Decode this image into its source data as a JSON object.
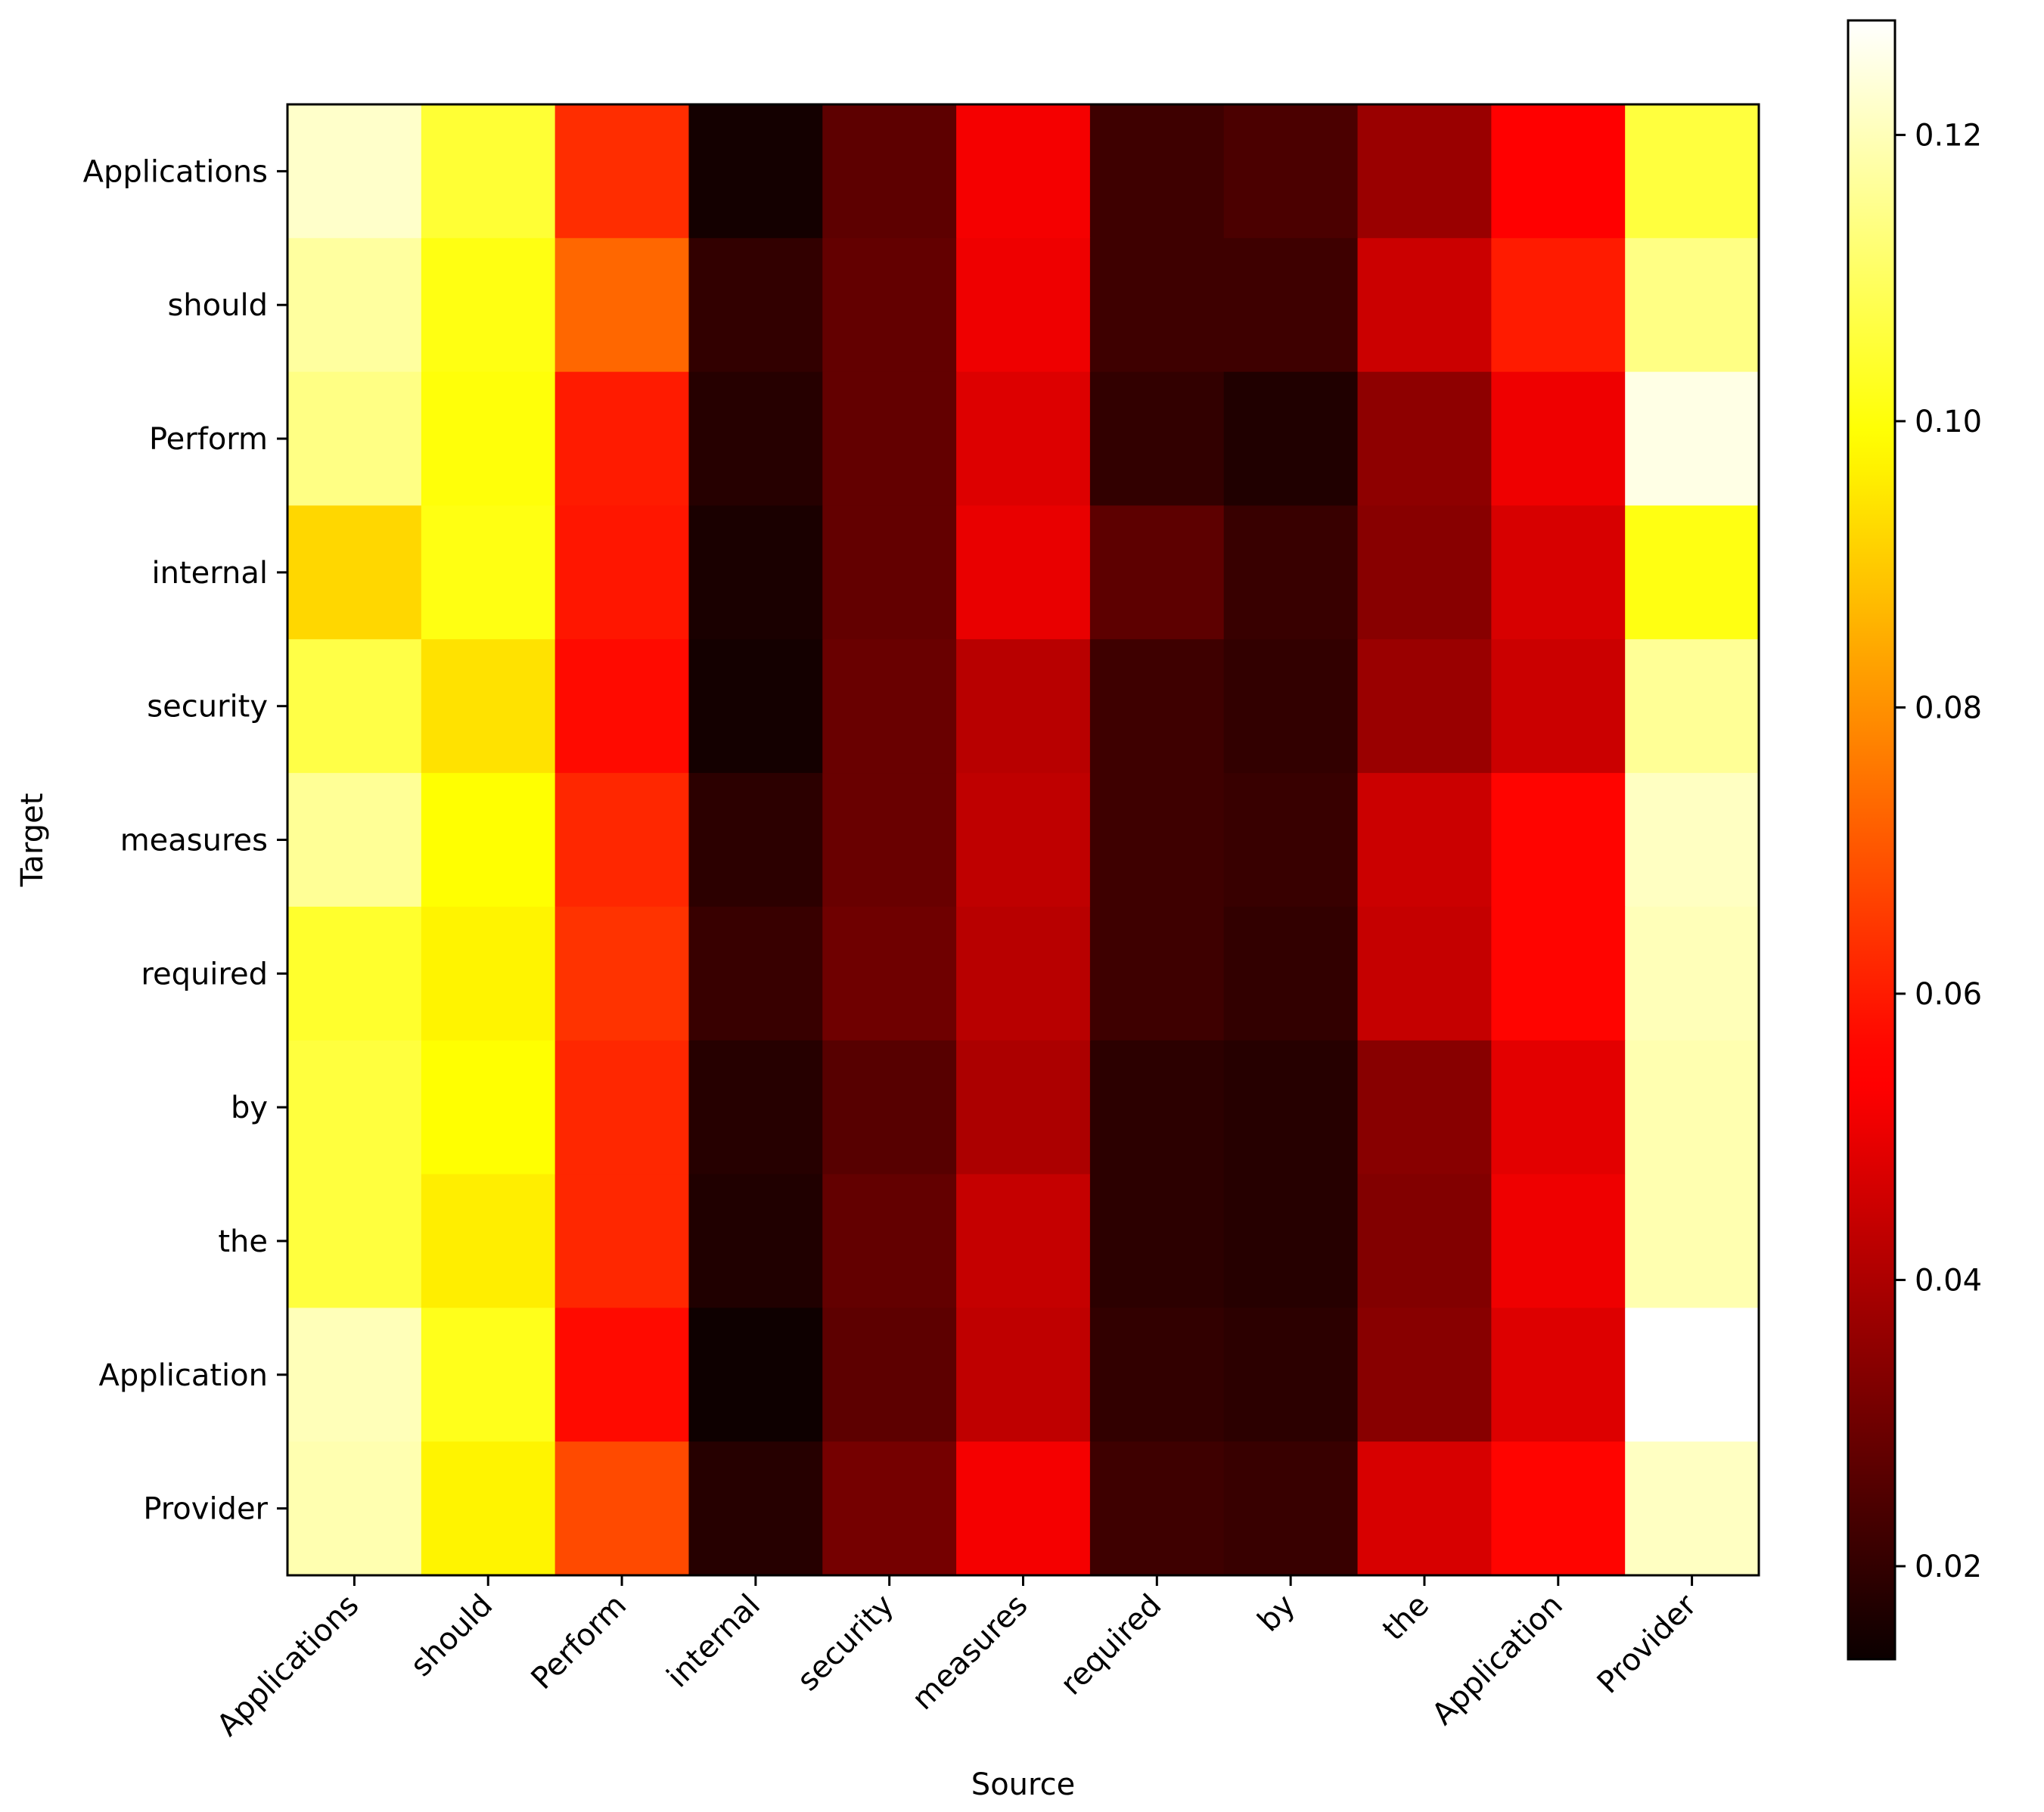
{
  "chart_data": {
    "type": "heatmap",
    "title": "",
    "xlabel": "Source",
    "ylabel": "Target",
    "x_categories": [
      "Applications",
      "should",
      "Perform",
      "internal",
      "security",
      "measures",
      "required",
      "by",
      "the",
      "Application",
      "Provider"
    ],
    "y_categories": [
      "Applications",
      "should",
      "Perform",
      "internal",
      "security",
      "measures",
      "required",
      "by",
      "the",
      "Application",
      "Provider"
    ],
    "values": [
      [
        0.122,
        0.105,
        0.063,
        0.015,
        0.027,
        0.052,
        0.022,
        0.024,
        0.037,
        0.054,
        0.106
      ],
      [
        0.117,
        0.101,
        0.073,
        0.02,
        0.028,
        0.051,
        0.022,
        0.022,
        0.045,
        0.06,
        0.114
      ],
      [
        0.114,
        0.1,
        0.06,
        0.018,
        0.028,
        0.048,
        0.02,
        0.017,
        0.035,
        0.051,
        0.125
      ],
      [
        0.092,
        0.101,
        0.059,
        0.016,
        0.028,
        0.05,
        0.027,
        0.021,
        0.034,
        0.047,
        0.101
      ],
      [
        0.107,
        0.094,
        0.057,
        0.015,
        0.029,
        0.042,
        0.022,
        0.02,
        0.037,
        0.045,
        0.116
      ],
      [
        0.116,
        0.099,
        0.062,
        0.019,
        0.029,
        0.043,
        0.022,
        0.021,
        0.045,
        0.056,
        0.121
      ],
      [
        0.104,
        0.097,
        0.064,
        0.021,
        0.03,
        0.042,
        0.022,
        0.02,
        0.044,
        0.056,
        0.12
      ],
      [
        0.106,
        0.099,
        0.062,
        0.018,
        0.026,
        0.04,
        0.019,
        0.018,
        0.034,
        0.049,
        0.119
      ],
      [
        0.106,
        0.096,
        0.062,
        0.017,
        0.028,
        0.044,
        0.019,
        0.018,
        0.033,
        0.051,
        0.119
      ],
      [
        0.12,
        0.102,
        0.057,
        0.014,
        0.027,
        0.043,
        0.02,
        0.019,
        0.034,
        0.048,
        0.128
      ],
      [
        0.119,
        0.097,
        0.068,
        0.018,
        0.031,
        0.052,
        0.022,
        0.021,
        0.047,
        0.056,
        0.121
      ]
    ],
    "colormap": "hot",
    "vmin": 0.0135,
    "vmax": 0.128,
    "colorbar_ticks": [
      0.02,
      0.04,
      0.06,
      0.08,
      0.1,
      0.12
    ],
    "colorbar_tick_labels": [
      "0.02",
      "0.04",
      "0.06",
      "0.08",
      "0.10",
      "0.12"
    ],
    "x_tick_rotation": 45
  }
}
